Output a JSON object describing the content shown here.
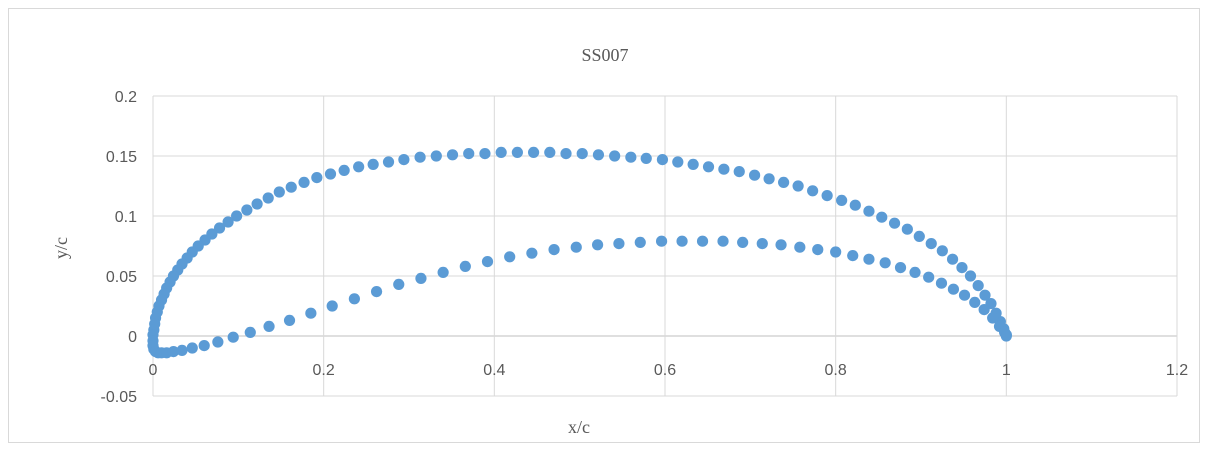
{
  "chart_data": {
    "type": "scatter",
    "title": "SS007",
    "xlabel": "x/c",
    "ylabel": "y/c",
    "xlim": [
      0,
      1.2
    ],
    "ylim": [
      -0.05,
      0.2
    ],
    "x_ticks": [
      "0",
      "0.2",
      "0.4",
      "0.6",
      "0.8",
      "1",
      "1.2"
    ],
    "y_ticks": [
      "-0.05",
      "0",
      "0.05",
      "0.1",
      "0.15",
      "0.2"
    ],
    "grid": true,
    "legend": "none",
    "marker_color": "#5b9bd5",
    "series": [
      {
        "x": [
          1.0,
          0.997,
          0.993,
          0.988,
          0.982,
          0.975,
          0.967,
          0.958,
          0.948,
          0.937,
          0.925,
          0.912,
          0.898,
          0.884,
          0.869,
          0.854,
          0.839,
          0.823,
          0.807,
          0.79,
          0.773,
          0.756,
          0.739,
          0.722,
          0.705,
          0.687,
          0.669,
          0.651,
          0.633,
          0.615,
          0.597,
          0.578,
          0.56,
          0.541,
          0.522,
          0.503,
          0.484,
          0.465,
          0.446,
          0.427,
          0.408,
          0.389,
          0.37,
          0.351,
          0.332,
          0.313,
          0.294,
          0.276,
          0.258,
          0.241,
          0.224,
          0.208,
          0.192,
          0.177,
          0.162,
          0.148,
          0.135,
          0.122,
          0.11,
          0.098,
          0.088,
          0.078,
          0.069,
          0.061,
          0.053,
          0.046,
          0.04,
          0.034,
          0.029,
          0.024,
          0.02,
          0.016,
          0.013,
          0.01,
          0.007,
          0.005,
          0.003,
          0.002,
          0.001,
          0.0,
          0.0,
          0.0,
          0.001,
          0.003,
          0.006,
          0.01,
          0.016,
          0.024,
          0.034,
          0.046,
          0.06,
          0.076,
          0.094,
          0.114,
          0.136,
          0.16,
          0.185,
          0.21,
          0.236,
          0.262,
          0.288,
          0.314,
          0.34,
          0.366,
          0.392,
          0.418,
          0.444,
          0.47,
          0.496,
          0.521,
          0.546,
          0.571,
          0.596,
          0.62,
          0.644,
          0.668,
          0.691,
          0.714,
          0.736,
          0.758,
          0.779,
          0.8,
          0.82,
          0.839,
          0.858,
          0.876,
          0.893,
          0.909,
          0.924,
          0.938,
          0.951,
          0.963,
          0.974,
          0.984,
          0.992,
          0.998,
          1.0
        ],
        "y": [
          0.001,
          0.006,
          0.012,
          0.019,
          0.027,
          0.034,
          0.042,
          0.05,
          0.057,
          0.064,
          0.071,
          0.077,
          0.083,
          0.089,
          0.094,
          0.099,
          0.104,
          0.109,
          0.113,
          0.117,
          0.121,
          0.125,
          0.128,
          0.131,
          0.134,
          0.137,
          0.139,
          0.141,
          0.143,
          0.145,
          0.147,
          0.148,
          0.149,
          0.15,
          0.151,
          0.152,
          0.152,
          0.153,
          0.153,
          0.153,
          0.153,
          0.152,
          0.152,
          0.151,
          0.15,
          0.149,
          0.147,
          0.145,
          0.143,
          0.141,
          0.138,
          0.135,
          0.132,
          0.128,
          0.124,
          0.12,
          0.115,
          0.11,
          0.105,
          0.1,
          0.095,
          0.09,
          0.085,
          0.08,
          0.075,
          0.07,
          0.065,
          0.06,
          0.055,
          0.05,
          0.045,
          0.04,
          0.035,
          0.03,
          0.025,
          0.02,
          0.015,
          0.01,
          0.005,
          0.001,
          -0.004,
          -0.008,
          -0.011,
          -0.013,
          -0.014,
          -0.014,
          -0.014,
          -0.013,
          -0.012,
          -0.01,
          -0.008,
          -0.005,
          -0.001,
          0.003,
          0.008,
          0.013,
          0.019,
          0.025,
          0.031,
          0.037,
          0.043,
          0.048,
          0.053,
          0.058,
          0.062,
          0.066,
          0.069,
          0.072,
          0.074,
          0.076,
          0.077,
          0.078,
          0.079,
          0.079,
          0.079,
          0.079,
          0.078,
          0.077,
          0.076,
          0.074,
          0.072,
          0.07,
          0.067,
          0.064,
          0.061,
          0.057,
          0.053,
          0.049,
          0.044,
          0.039,
          0.034,
          0.028,
          0.022,
          0.015,
          0.008,
          0.003,
          0.0
        ]
      }
    ]
  }
}
